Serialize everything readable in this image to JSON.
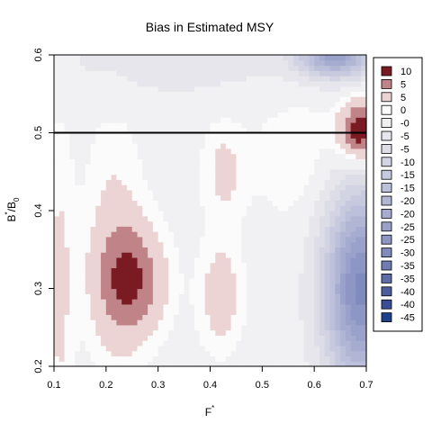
{
  "chart_data": {
    "type": "heatmap",
    "title": "Bias in Estimated MSY",
    "xlabel": {
      "base": "F",
      "sup": "*"
    },
    "ylabel": {
      "base": "B",
      "sup": "*",
      "mid": "/B",
      "sub": "0"
    },
    "xlim": [
      0.1,
      0.7
    ],
    "ylim": [
      0.2,
      0.6
    ],
    "x_ticks": [
      0.1,
      0.2,
      0.3,
      0.4,
      0.5,
      0.6,
      0.7
    ],
    "x_tick_labels": [
      "0.1",
      "0.2",
      "0.3",
      "0.4",
      "0.5",
      "0.6",
      "0.7"
    ],
    "y_ticks": [
      0.2,
      0.3,
      0.4,
      0.5,
      0.6
    ],
    "y_tick_labels": [
      "0.2",
      "0.3",
      "0.4",
      "0.5",
      "0.6"
    ],
    "reference_line": {
      "y": 0.5
    },
    "legend": {
      "placement": "right",
      "entries": [
        {
          "label": "10",
          "color": "#7a1a22"
        },
        {
          "label": "5",
          "color": "#c08488"
        },
        {
          "label": "5",
          "color": "#ecd4d4"
        },
        {
          "label": "0",
          "color": "#fbfbfb"
        },
        {
          "label": "-0",
          "color": "#f1f1f3"
        },
        {
          "label": "-5",
          "color": "#e6e6ec"
        },
        {
          "label": "-5",
          "color": "#dcdde7"
        },
        {
          "label": "-10",
          "color": "#d2d4e3"
        },
        {
          "label": "-15",
          "color": "#c7cadf"
        },
        {
          "label": "-15",
          "color": "#bcc0da"
        },
        {
          "label": "-20",
          "color": "#b1b6d5"
        },
        {
          "label": "-20",
          "color": "#a6acd0"
        },
        {
          "label": "-25",
          "color": "#9aa2cb"
        },
        {
          "label": "-25",
          "color": "#8d96c4"
        },
        {
          "label": "-30",
          "color": "#7f8abd"
        },
        {
          "label": "-35",
          "color": "#6f7cb4"
        },
        {
          "label": "-35",
          "color": "#5e6daa"
        },
        {
          "label": "-40",
          "color": "#4c5d9f"
        },
        {
          "label": "-40",
          "color": "#3a4e96"
        },
        {
          "label": "-45",
          "color": "#1f418c"
        }
      ]
    },
    "surface": {
      "base": -1,
      "components": [
        {
          "x": 0.25,
          "y": 0.31,
          "sx": 0.045,
          "sy": 0.05,
          "amp": 8
        },
        {
          "x": 0.215,
          "y": 0.36,
          "sx": 0.04,
          "sy": 0.12,
          "amp": 3
        },
        {
          "x": 0.42,
          "y": 0.29,
          "sx": 0.03,
          "sy": 0.05,
          "amp": 4
        },
        {
          "x": 0.425,
          "y": 0.45,
          "sx": 0.03,
          "sy": 0.05,
          "amp": 3
        },
        {
          "x": 0.57,
          "y": 0.47,
          "sx": 0.06,
          "sy": 0.06,
          "amp": 2.5
        },
        {
          "x": 0.69,
          "y": 0.5,
          "sx": 0.03,
          "sy": 0.03,
          "amp": 12
        },
        {
          "x": 0.11,
          "y": 0.3,
          "sx": 0.02,
          "sy": 0.15,
          "amp": 3
        },
        {
          "x": 0.69,
          "y": 0.3,
          "sx": 0.05,
          "sy": 0.09,
          "amp": -28
        },
        {
          "x": 0.64,
          "y": 0.6,
          "sx": 0.05,
          "sy": 0.02,
          "amp": -22
        },
        {
          "x": 0.33,
          "y": 0.59,
          "sx": 0.2,
          "sy": 0.035,
          "amp": -3
        }
      ]
    }
  }
}
